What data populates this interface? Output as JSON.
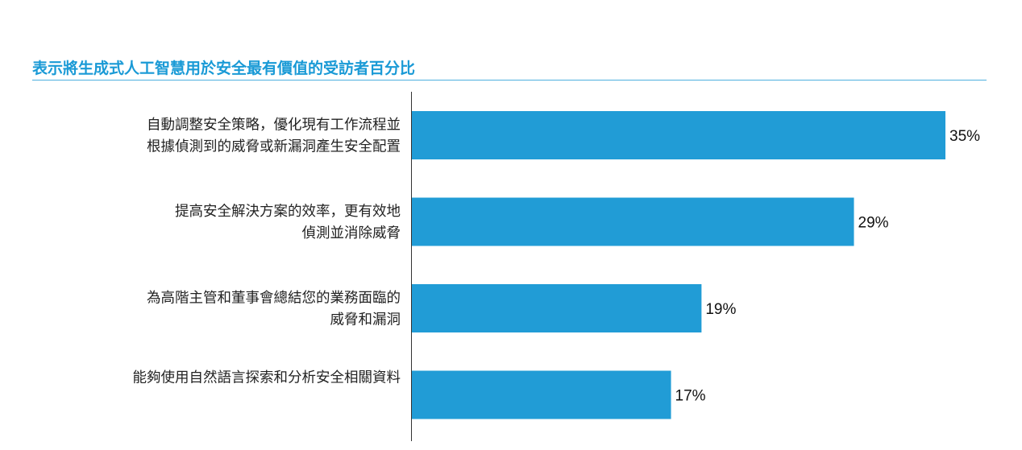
{
  "accent_color": "#1a9ad6",
  "bar_color": "#219cd6",
  "chart_data": {
    "type": "bar",
    "orientation": "horizontal",
    "title": "表示將生成式人工智慧用於安全最有價值的受訪者百分比",
    "categories": [
      [
        "自動調整安全策略，優化現有工作流程並",
        "根據偵測到的威脅或新漏洞產生安全配置"
      ],
      [
        "提高安全解決方案的效率，更有效地",
        "偵測並消除威脅"
      ],
      [
        "為高階主管和董事會總結您的業務面臨的",
        "威脅和漏洞"
      ],
      [
        "能夠使用自然語言探索和分析安全相關資料"
      ]
    ],
    "values": [
      35,
      29,
      19,
      17
    ],
    "value_labels": [
      "35%",
      "29%",
      "19%",
      "17%"
    ],
    "unit": "%",
    "xlim": [
      0,
      35
    ],
    "grid": false,
    "legend": "none"
  }
}
